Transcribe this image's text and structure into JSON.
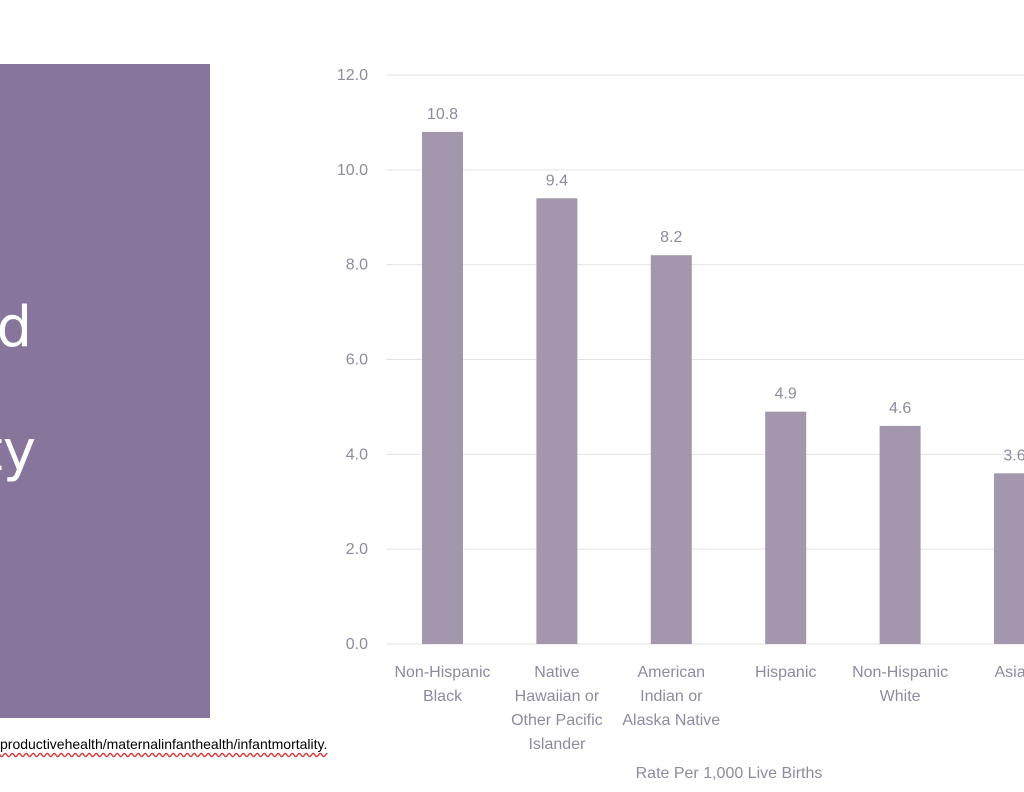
{
  "panel": {
    "line1": "nd",
    "line2": "ty"
  },
  "source_text": "productivehealth/maternalinfanthealth/infantmortality.",
  "colors": {
    "panel": "#87759c",
    "bar": "#a397ad",
    "grid": "#e3e3e3",
    "text": "#8e8aa0"
  },
  "chart_data": {
    "type": "bar",
    "categories": [
      [
        "Non-Hispanic",
        "Black"
      ],
      [
        "Native",
        "Hawaiian or",
        "Other Pacific",
        "Islander"
      ],
      [
        "American",
        "Indian or",
        "Alaska Native"
      ],
      [
        "Hispanic"
      ],
      [
        "Non-Hispanic",
        "White"
      ],
      [
        "Asian"
      ]
    ],
    "values": [
      10.8,
      9.4,
      8.2,
      4.9,
      4.6,
      3.6
    ],
    "value_labels": [
      "10.8",
      "9.4",
      "8.2",
      "4.9",
      "4.6",
      "3.6"
    ],
    "title": "",
    "xlabel": "Rate Per 1,000 Live Births",
    "ylabel": "",
    "ylim": [
      0,
      12
    ],
    "yticks": [
      "0.0",
      "2.0",
      "4.0",
      "6.0",
      "8.0",
      "10.0",
      "12.0"
    ],
    "grid": true,
    "legend": "none"
  }
}
